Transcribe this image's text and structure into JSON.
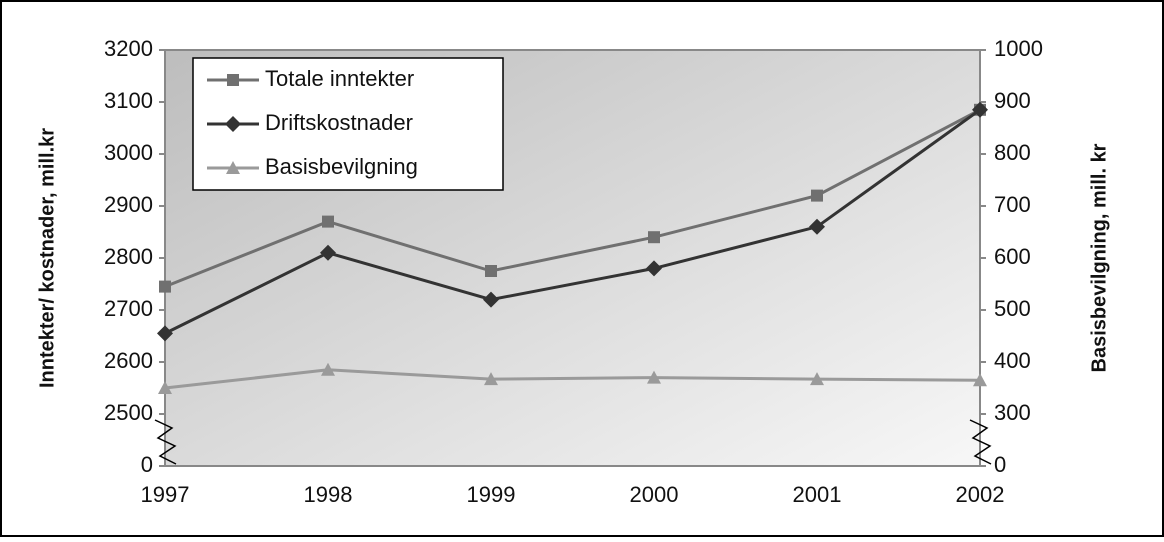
{
  "chart_data": {
    "type": "line",
    "categories": [
      "1997",
      "1998",
      "1999",
      "2000",
      "2001",
      "2002"
    ],
    "series": [
      {
        "name": "Totale inntekter",
        "color": "#707070",
        "marker": "square",
        "values": [
          2745,
          2870,
          2775,
          2840,
          2920,
          3085
        ]
      },
      {
        "name": "Driftskostnader",
        "color": "#333333",
        "marker": "diamond",
        "values": [
          2655,
          2810,
          2720,
          2780,
          2860,
          3085
        ]
      },
      {
        "name": "Basisbevilgning",
        "color": "#9a9a9a",
        "marker": "triangle",
        "axis": "y2",
        "values": [
          350,
          385,
          367,
          370,
          367,
          365
        ]
      }
    ],
    "ylabel": "Inntekter/ kostnader, mill.kr",
    "y2label": "Basisbevilgning, mill. kr",
    "ylim": [
      0,
      3200
    ],
    "yticks": [
      0,
      2500,
      2600,
      2700,
      2800,
      2900,
      3000,
      3100,
      3200
    ],
    "y2lim": [
      0,
      1000
    ],
    "y2ticks": [
      0,
      300,
      400,
      500,
      600,
      700,
      800,
      900,
      1000
    ],
    "axis_break": true,
    "legend": "upper left"
  }
}
